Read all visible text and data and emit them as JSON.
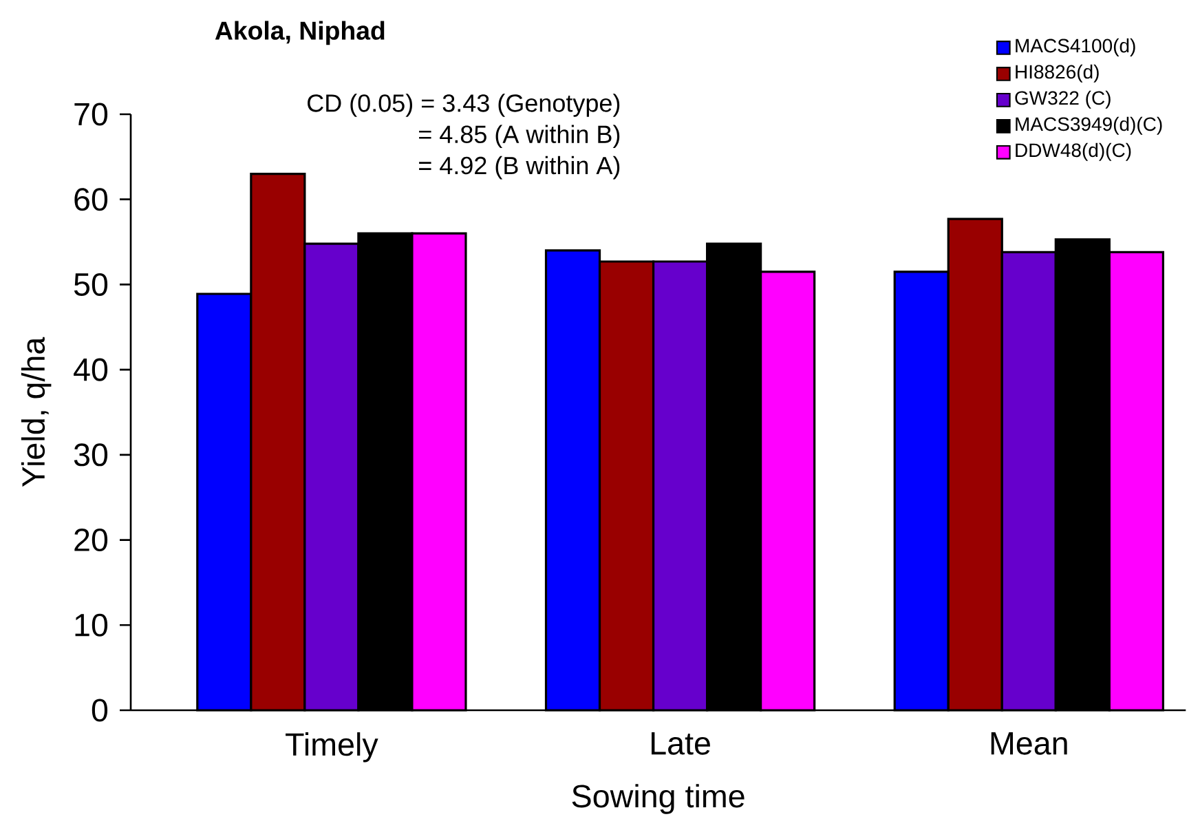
{
  "chart_data": {
    "type": "bar",
    "title": "Akola, Niphad",
    "xlabel": "Sowing time",
    "ylabel": "Yield, q/ha",
    "categories": [
      "Timely",
      "Late",
      "Mean"
    ],
    "series": [
      {
        "name": "MACS4100(d)",
        "color": "#0000ff",
        "values": [
          48.9,
          54.0,
          51.5
        ]
      },
      {
        "name": "HI8826(d)",
        "color": "#990000",
        "values": [
          63.0,
          52.7,
          57.7
        ]
      },
      {
        "name": "GW322 (C)",
        "color": "#6600cc",
        "values": [
          54.8,
          52.7,
          53.8
        ]
      },
      {
        "name": "MACS3949(d)(C)",
        "color": "#000000",
        "values": [
          56.0,
          54.8,
          55.3
        ]
      },
      {
        "name": "DDW48(d)(C)",
        "color": "#ff00ff",
        "values": [
          56.0,
          51.5,
          53.8
        ]
      }
    ],
    "ylim": [
      0,
      70
    ],
    "yticks": [
      0,
      10,
      20,
      30,
      40,
      50,
      60,
      70
    ],
    "annotations": [
      "CD (0.05) = 3.43 (Genotype)",
      "= 4.85 (A within B)",
      "= 4.92 (B within A)"
    ],
    "legend": "top right"
  }
}
